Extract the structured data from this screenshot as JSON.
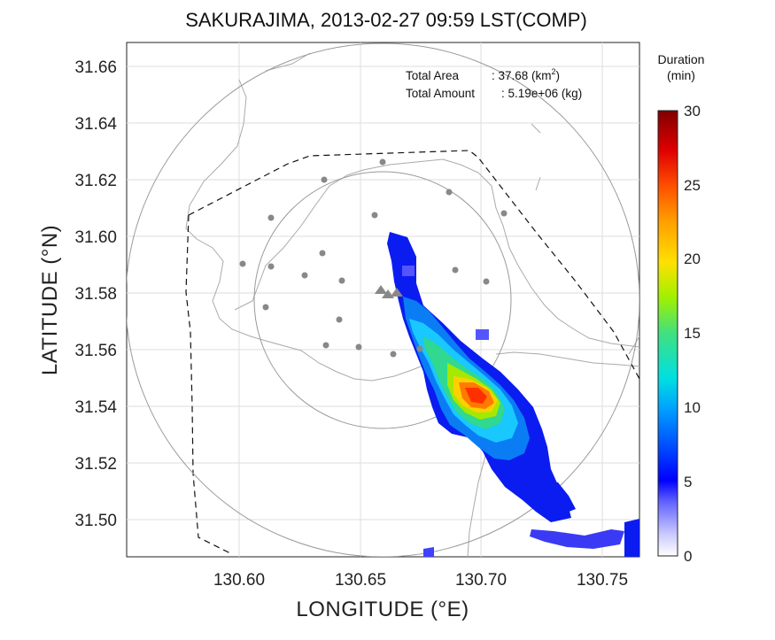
{
  "title": "SAKURAJIMA, 2013-02-27 09:59 LST(COMP)",
  "xlabel": "LONGITUDE (°E)",
  "ylabel": "LATITUDE (°N)",
  "x_ticks": [
    "130.60",
    "130.65",
    "130.70",
    "130.75"
  ],
  "y_ticks": [
    "31.66",
    "31.64",
    "31.62",
    "31.60",
    "31.58",
    "31.56",
    "31.54",
    "31.52",
    "31.50"
  ],
  "info": {
    "total_area_label": "Total Area",
    "total_area_value": ": 37.68 (km",
    "total_area_unit_sup": "2",
    "total_area_close": ")",
    "total_amount_label": "Total Amount",
    "total_amount_value": ": 5.19e+06 (kg)"
  },
  "colorbar": {
    "title_line1": "Duration",
    "title_line2": "(min)",
    "ticks": [
      "30",
      "25",
      "20",
      "15",
      "10",
      "5",
      "0"
    ]
  },
  "colors": {
    "ring": "#999999",
    "coast": "#aaaaaa",
    "station": "#888888",
    "boundary": "#111111"
  },
  "chart_data": {
    "type": "heatmap",
    "xlim": [
      130.553,
      130.762
    ],
    "ylim": [
      31.4875,
      31.667
    ],
    "colorbar_range": [
      0,
      30
    ],
    "volcano_vents": [
      [
        130.657,
        31.58
      ],
      [
        130.659,
        31.578
      ],
      [
        130.663,
        31.579
      ]
    ]
  }
}
